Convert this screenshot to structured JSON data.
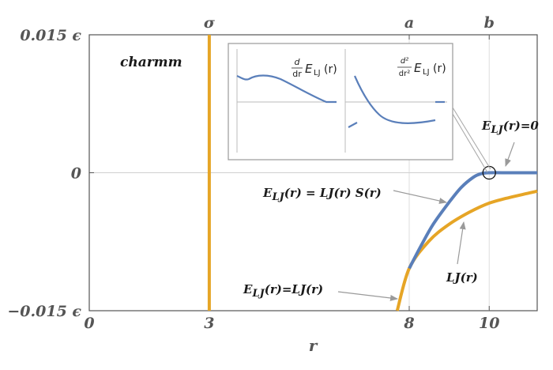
{
  "chart_data": {
    "type": "line",
    "title": "",
    "panel_label": "charmm",
    "xlabel": "r",
    "ylabel": "",
    "xlim": [
      0,
      11.2
    ],
    "ylim": [
      -0.015,
      0.015
    ],
    "x_ticks": [
      {
        "value": 0,
        "label": "0"
      },
      {
        "value": 3,
        "label": "3"
      },
      {
        "value": 8,
        "label": "8"
      },
      {
        "value": 10,
        "label": "10"
      }
    ],
    "y_ticks": [
      {
        "value": 0.015,
        "label": "0.015 ϵ"
      },
      {
        "value": 0,
        "label": "0"
      },
      {
        "value": -0.015,
        "label": "−0.015 ϵ"
      }
    ],
    "top_ticks": [
      {
        "value": 3,
        "label": "σ"
      },
      {
        "value": 8,
        "label": "a"
      },
      {
        "value": 10,
        "label": "b"
      }
    ],
    "grid": "vertical lines at 8 and 10, horizontal line at 0",
    "series": [
      {
        "name": "LJ(r)",
        "color": "#e6a526",
        "x": [
          7.7,
          8.0,
          8.5,
          9.0,
          9.5,
          10.0,
          10.5,
          11.0,
          11.2
        ],
        "y": [
          -0.015,
          -0.0104,
          -0.0074,
          -0.0056,
          -0.0043,
          -0.0033,
          -0.0027,
          -0.0022,
          -0.002
        ]
      },
      {
        "name": "E_LJ(r) = LJ(r) S(r)",
        "color": "#5a7fba",
        "x": [
          8.0,
          8.3,
          8.6,
          9.0,
          9.3,
          9.6,
          9.8,
          10.0,
          10.5,
          11.0,
          11.2
        ],
        "y": [
          -0.0104,
          -0.0079,
          -0.0056,
          -0.0032,
          -0.0016,
          -0.0005,
          -0.0001,
          0.0,
          0.0,
          0.0,
          0.0
        ]
      },
      {
        "name": "sigma line",
        "color": "#e6a526",
        "x": [
          3,
          3
        ],
        "y": [
          -0.015,
          0.015
        ]
      }
    ],
    "annotations": [
      {
        "text_parts": [
          "E",
          "LJ",
          "(r)=0"
        ],
        "target": "E_LJ = 0 for r ≥ b"
      },
      {
        "text_parts": [
          "E",
          "LJ",
          "(r) = LJ(r) S(r)"
        ],
        "target": "blue curve"
      },
      {
        "text_parts": [
          "LJ(r)"
        ],
        "target": "orange curve"
      },
      {
        "text_parts": [
          "E",
          "LJ",
          "(r)=LJ(r)"
        ],
        "target": "r < a"
      }
    ],
    "inset": {
      "panels": [
        {
          "label_num": "d",
          "label_den": "dr",
          "label_fn": "E",
          "label_sub": "LJ",
          "label_arg": "(r)",
          "color": "#5a7fba"
        },
        {
          "label_num": "d²",
          "label_den": "dr²",
          "label_fn": "E",
          "label_sub": "LJ",
          "label_arg": "(r)",
          "color": "#5a7fba"
        }
      ]
    }
  }
}
